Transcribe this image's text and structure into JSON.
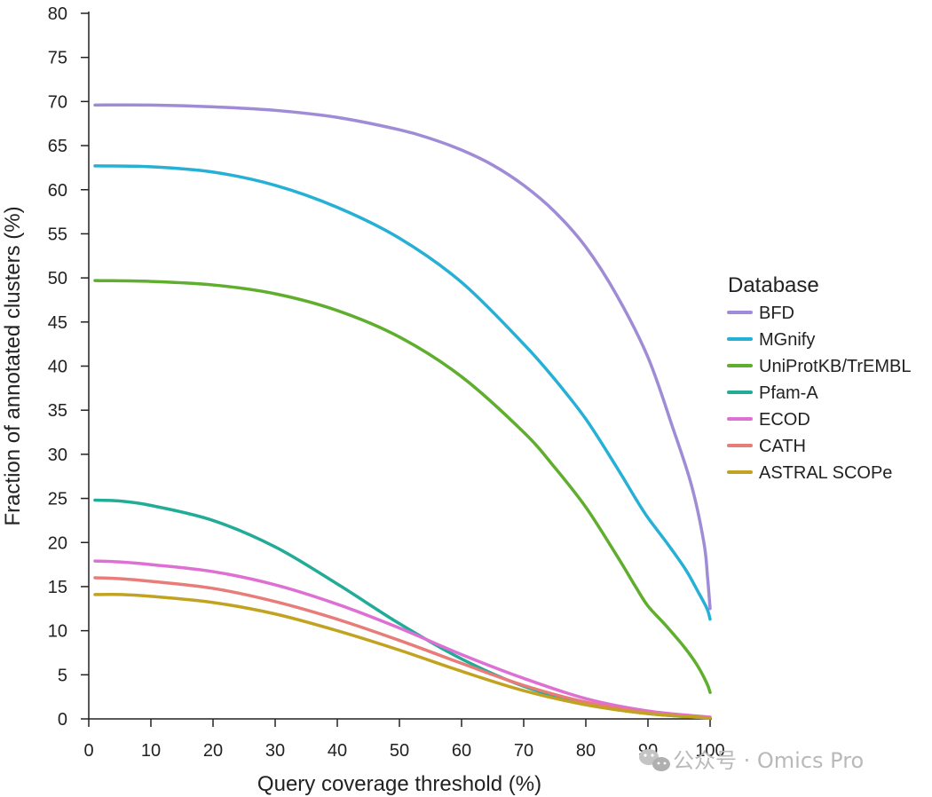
{
  "chart_data": {
    "type": "line",
    "title": "",
    "xlabel": "Query coverage threshold (%)",
    "ylabel": "Fraction of annotated clusters (%)",
    "xlim": [
      0,
      100
    ],
    "ylim": [
      0,
      80
    ],
    "xticks": [
      0,
      10,
      20,
      30,
      40,
      50,
      60,
      70,
      80,
      90,
      100
    ],
    "yticks": [
      0,
      5,
      10,
      15,
      20,
      25,
      30,
      35,
      40,
      45,
      50,
      55,
      60,
      65,
      70,
      75,
      80
    ],
    "grid": false,
    "legend": {
      "title": "Database",
      "position": "right"
    },
    "series": [
      {
        "name": "BFD",
        "color": "#a08bd6",
        "points": [
          [
            1,
            69.6
          ],
          [
            10,
            69.6
          ],
          [
            20,
            69.4
          ],
          [
            30,
            69.0
          ],
          [
            40,
            68.2
          ],
          [
            50,
            66.8
          ],
          [
            55,
            65.8
          ],
          [
            60,
            64.5
          ],
          [
            65,
            62.8
          ],
          [
            70,
            60.5
          ],
          [
            75,
            57.5
          ],
          [
            80,
            53.5
          ],
          [
            85,
            48.0
          ],
          [
            90,
            41.0
          ],
          [
            94,
            33.0
          ],
          [
            97,
            26.5
          ],
          [
            99,
            20.0
          ],
          [
            99.6,
            16.0
          ],
          [
            100,
            12.5
          ]
        ]
      },
      {
        "name": "MGnify",
        "color": "#27b0d6",
        "points": [
          [
            1,
            62.7
          ],
          [
            10,
            62.6
          ],
          [
            20,
            62.0
          ],
          [
            30,
            60.5
          ],
          [
            40,
            58.0
          ],
          [
            50,
            54.5
          ],
          [
            60,
            49.5
          ],
          [
            70,
            42.5
          ],
          [
            75,
            38.5
          ],
          [
            80,
            34.0
          ],
          [
            85,
            28.5
          ],
          [
            88,
            25.0
          ],
          [
            90,
            22.8
          ],
          [
            93,
            20.0
          ],
          [
            96,
            17.0
          ],
          [
            98,
            14.5
          ],
          [
            99.5,
            12.5
          ],
          [
            100,
            11.3
          ]
        ]
      },
      {
        "name": "UniProtKB/TrEMBL",
        "color": "#5fae2e",
        "points": [
          [
            1,
            49.7
          ],
          [
            10,
            49.6
          ],
          [
            20,
            49.2
          ],
          [
            30,
            48.2
          ],
          [
            40,
            46.3
          ],
          [
            50,
            43.3
          ],
          [
            60,
            38.8
          ],
          [
            70,
            32.5
          ],
          [
            75,
            28.5
          ],
          [
            80,
            24.0
          ],
          [
            85,
            18.5
          ],
          [
            88,
            15.0
          ],
          [
            90,
            12.8
          ],
          [
            93,
            10.5
          ],
          [
            96,
            8.0
          ],
          [
            98,
            6.0
          ],
          [
            99.5,
            4.0
          ],
          [
            100,
            3.0
          ]
        ]
      },
      {
        "name": "Pfam-A",
        "color": "#22ac98",
        "points": [
          [
            1,
            24.8
          ],
          [
            5,
            24.7
          ],
          [
            10,
            24.2
          ],
          [
            20,
            22.5
          ],
          [
            30,
            19.5
          ],
          [
            40,
            15.3
          ],
          [
            50,
            10.8
          ],
          [
            60,
            6.8
          ],
          [
            70,
            3.7
          ],
          [
            80,
            1.7
          ],
          [
            90,
            0.6
          ],
          [
            100,
            0.1
          ]
        ]
      },
      {
        "name": "ECOD",
        "color": "#df70d3",
        "points": [
          [
            1,
            17.9
          ],
          [
            5,
            17.8
          ],
          [
            10,
            17.5
          ],
          [
            20,
            16.7
          ],
          [
            30,
            15.2
          ],
          [
            40,
            13.0
          ],
          [
            50,
            10.3
          ],
          [
            60,
            7.3
          ],
          [
            70,
            4.6
          ],
          [
            80,
            2.3
          ],
          [
            90,
            0.9
          ],
          [
            100,
            0.2
          ]
        ]
      },
      {
        "name": "CATH",
        "color": "#e87c78",
        "points": [
          [
            1,
            16.0
          ],
          [
            5,
            15.9
          ],
          [
            10,
            15.6
          ],
          [
            20,
            14.8
          ],
          [
            30,
            13.3
          ],
          [
            40,
            11.3
          ],
          [
            50,
            8.9
          ],
          [
            60,
            6.3
          ],
          [
            70,
            3.8
          ],
          [
            80,
            1.9
          ],
          [
            90,
            0.7
          ],
          [
            100,
            0.1
          ]
        ]
      },
      {
        "name": "ASTRAL SCOPe",
        "color": "#c2a321",
        "points": [
          [
            1,
            14.1
          ],
          [
            5,
            14.1
          ],
          [
            10,
            13.9
          ],
          [
            20,
            13.2
          ],
          [
            30,
            11.9
          ],
          [
            40,
            10.0
          ],
          [
            50,
            7.8
          ],
          [
            60,
            5.4
          ],
          [
            70,
            3.2
          ],
          [
            80,
            1.6
          ],
          [
            90,
            0.6
          ],
          [
            100,
            0.1
          ]
        ]
      }
    ]
  },
  "watermark": {
    "text": "公众号 · Omics Pro"
  }
}
